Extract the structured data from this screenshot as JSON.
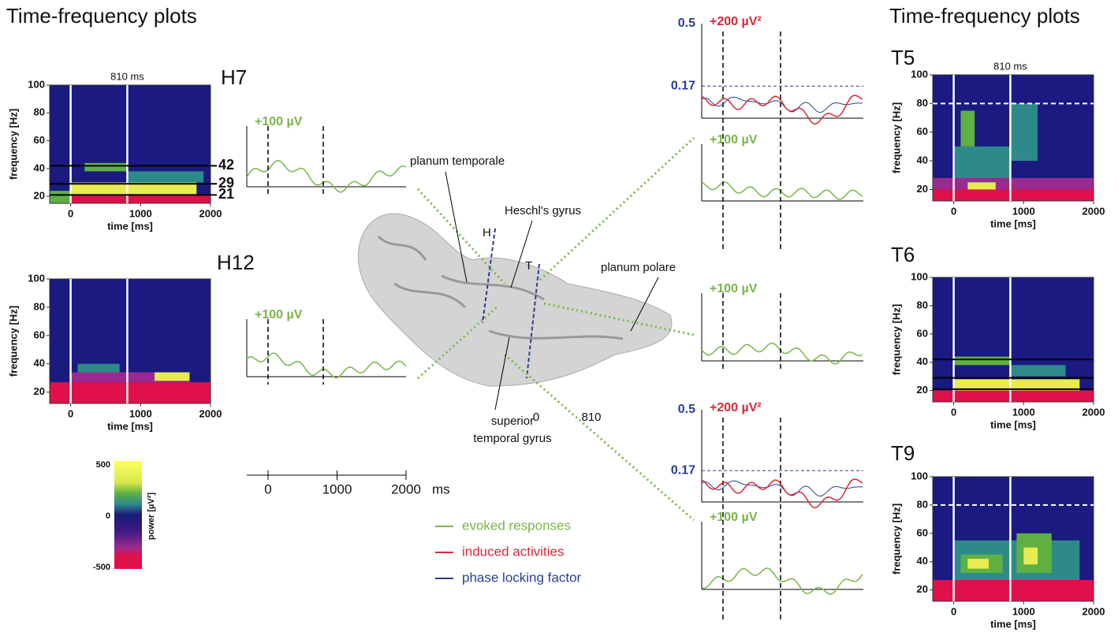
{
  "headings": {
    "left": "Time-frequency plots",
    "right": "Time-frequency plots"
  },
  "tf_plots": [
    {
      "label": "H7",
      "marker": {
        "value": 810,
        "label": "810 ms"
      },
      "ylabel": "frequency [Hz]",
      "xlabel": "time [ms]",
      "xlim": [
        -300,
        2000
      ],
      "ylim": [
        15,
        100
      ],
      "xticks": [
        0,
        1000,
        2000
      ],
      "yticks": [
        20,
        40,
        60,
        80,
        100
      ],
      "lines": [
        42,
        29,
        21
      ],
      "labeled_lines": true
    },
    {
      "label": "H12",
      "marker": {
        "value": 810,
        "label": ""
      },
      "ylabel": "frequency [Hz]",
      "xlabel": "time [ms]",
      "xlim": [
        -300,
        2000
      ],
      "ylim": [
        12,
        100
      ],
      "xticks": [
        0,
        1000,
        2000
      ],
      "yticks": [
        20,
        40,
        60,
        80,
        100
      ]
    },
    {
      "label": "T5",
      "marker": {
        "value": 810,
        "label": "810 ms"
      },
      "ylabel": "frequency [Hz]",
      "xlabel": "time [ms]",
      "xlim": [
        -300,
        2000
      ],
      "ylim": [
        12,
        100
      ],
      "xticks": [
        0,
        1000,
        2000
      ],
      "yticks": [
        20,
        40,
        60,
        80,
        100
      ],
      "dashed_line": 80
    },
    {
      "label": "T6",
      "marker": {
        "value": 810,
        "label": ""
      },
      "ylabel": "frequency [Hz]",
      "xlabel": "time [ms]",
      "xlim": [
        -300,
        2000
      ],
      "ylim": [
        12,
        100
      ],
      "xticks": [
        0,
        1000,
        2000
      ],
      "yticks": [
        20,
        40,
        60,
        80,
        100
      ],
      "lines": [
        42,
        29,
        21
      ]
    },
    {
      "label": "T9",
      "marker": {
        "value": 810,
        "label": ""
      },
      "ylabel": "frequency [Hz]",
      "xlabel": "time [ms]",
      "xlim": [
        -300,
        2000
      ],
      "ylim": [
        12,
        100
      ],
      "xticks": [
        0,
        1000,
        2000
      ],
      "yticks": [
        20,
        40,
        60,
        80,
        100
      ],
      "dashed_line": 80
    }
  ],
  "traces": [
    {
      "evoked_scale": "+100 µV"
    },
    {
      "evoked_scale": "+100 µV",
      "time_labels": [
        0,
        810
      ]
    },
    {
      "induced_scale": "+200 µV²",
      "plf_max": 0.5,
      "plf_ref": 0.17,
      "evoked_scale": "+100 µV"
    },
    {
      "evoked_scale": "+100 µV"
    },
    {
      "induced_scale": "+200 µV²",
      "plf_max": 0.5,
      "plf_ref": 0.17,
      "evoked_scale": "+100 µV",
      "time_labels": [
        0,
        810
      ]
    }
  ],
  "time_axis": {
    "ticks": [
      0,
      1000,
      2000
    ],
    "unit": "ms"
  },
  "colorbar": {
    "label": "power [µV²]",
    "ticks": [
      500,
      0,
      -500
    ]
  },
  "brain": {
    "labels": [
      "planum temporale",
      "Heschl's gyrus",
      "planum polare",
      "superior",
      "temporal gyrus"
    ],
    "markers": [
      "H",
      "T"
    ]
  },
  "legend": [
    {
      "name": "evoked responses",
      "color": "#7ab648"
    },
    {
      "name": "induced activities",
      "color": "#d9283a"
    },
    {
      "name": "phase locking factor",
      "color": "#2a3d8f"
    }
  ]
}
